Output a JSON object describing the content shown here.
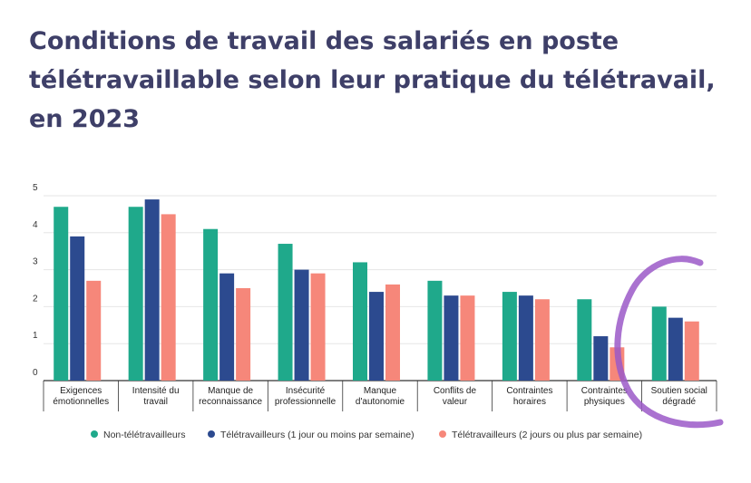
{
  "chart_data": {
    "type": "bar",
    "title": "Conditions de travail des salariés en poste télétravaillable selon leur pratique du télétravail, en 2023",
    "categories": [
      [
        "Exigences",
        "émotionnelles"
      ],
      [
        "Intensité du",
        "travail"
      ],
      [
        "Manque de",
        "reconnaissance"
      ],
      [
        "Insécurité",
        "professionnelle"
      ],
      [
        "Manque",
        "d'autonomie"
      ],
      [
        "Conflits de",
        "valeur"
      ],
      [
        "Contraintes",
        "horaires"
      ],
      [
        "Contraintes",
        "physiques"
      ],
      [
        "Soutien social",
        "dégradé"
      ]
    ],
    "series": [
      {
        "name": "Non-télétravailleurs",
        "color": "#1fa98b",
        "values": [
          4.7,
          4.7,
          4.1,
          3.7,
          3.2,
          2.7,
          2.4,
          2.2,
          2.0
        ]
      },
      {
        "name": "Télétravailleurs (1 jour ou moins par semaine)",
        "color": "#2c4a8f",
        "values": [
          3.9,
          4.9,
          2.9,
          3.0,
          2.4,
          2.3,
          2.3,
          1.2,
          1.7
        ]
      },
      {
        "name": "Télétravailleurs (2 jours ou plus par semaine)",
        "color": "#f6877a",
        "values": [
          2.7,
          4.5,
          2.5,
          2.9,
          2.6,
          2.3,
          2.2,
          0.9,
          1.6
        ]
      }
    ],
    "yticks": [
      0,
      1,
      2,
      3,
      4,
      5
    ],
    "ylim": [
      0,
      5
    ],
    "grid": true,
    "legend_position": "bottom"
  },
  "annotation": {
    "color": "#9b59c8"
  }
}
